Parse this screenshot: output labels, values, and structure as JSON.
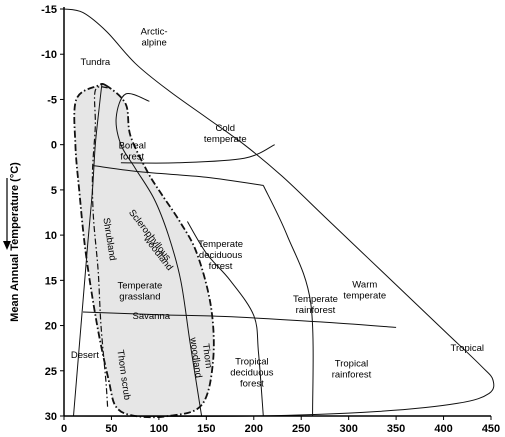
{
  "chart_data": {
    "type": "diagram",
    "ylabel": "Mean Annual Temperature (°C)",
    "xlim": [
      0,
      450
    ],
    "ylim": [
      -15,
      30
    ],
    "y_inverted": true,
    "x_ticks": [
      0,
      50,
      100,
      150,
      200,
      250,
      300,
      350,
      400,
      450
    ],
    "y_ticks": [
      -15,
      -10,
      -5,
      0,
      5,
      10,
      15,
      20,
      25,
      30
    ],
    "shaded_region_color": "#e6e6e6",
    "biomes": [
      {
        "lines": [
          "Arctic-",
          "alpine"
        ],
        "x": 95,
        "y": -12.2
      },
      {
        "lines": [
          "Tundra"
        ],
        "x": 33,
        "y": -8.8
      },
      {
        "lines": [
          "Boreal",
          "forest"
        ],
        "x": 72,
        "y": 0.4
      },
      {
        "lines": [
          "Cold",
          "temperate"
        ],
        "x": 170,
        "y": -1.5
      },
      {
        "lines": [
          "Temperate",
          "deciduous",
          "forest"
        ],
        "x": 165,
        "y": 11.3
      },
      {
        "lines": [
          "Temperate",
          "grassland"
        ],
        "x": 80,
        "y": 15.9
      },
      {
        "lines": [
          "Savanna"
        ],
        "x": 92,
        "y": 19.3
      },
      {
        "lines": [
          "Temperate",
          "rainforest"
        ],
        "x": 265,
        "y": 17.4
      },
      {
        "lines": [
          "Warm",
          "temperate"
        ],
        "x": 317,
        "y": 15.8
      },
      {
        "lines": [
          "Tropical"
        ],
        "x": 425,
        "y": 22.8
      },
      {
        "lines": [
          "Tropical",
          "deciduous",
          "forest"
        ],
        "x": 198,
        "y": 24.3
      },
      {
        "lines": [
          "Tropical",
          "rainforest"
        ],
        "x": 303,
        "y": 24.5
      },
      {
        "lines": [
          "Desert"
        ],
        "x": 22,
        "y": 23.6
      }
    ],
    "rotated_labels": [
      {
        "text": "Shrubland",
        "x": 45,
        "y": 10.5,
        "angle": 81
      },
      {
        "text": "Sclerophyllous",
        "x": 88,
        "y": 10.2,
        "angle": 52
      },
      {
        "text": "woodland",
        "x": 97,
        "y": 12.2,
        "angle": 52
      },
      {
        "text": "Thorn scrub",
        "x": 60,
        "y": 25.5,
        "angle": 82
      },
      {
        "text": "Thorn",
        "x": 148,
        "y": 23.4,
        "angle": 82
      },
      {
        "text": "woodland",
        "x": 136,
        "y": 23.6,
        "angle": 82
      }
    ],
    "boundaries": {
      "outer_envelope": [
        [
          0,
          -15
        ],
        [
          20,
          -14.6
        ],
        [
          45,
          -12.5
        ],
        [
          75,
          -9
        ],
        [
          110,
          -6
        ],
        [
          150,
          -3
        ],
        [
          190,
          0
        ],
        [
          230,
          3.5
        ],
        [
          275,
          8
        ],
        [
          320,
          12.5
        ],
        [
          365,
          17
        ],
        [
          405,
          21
        ],
        [
          440,
          24.5
        ],
        [
          452,
          26
        ],
        [
          448,
          27.5
        ],
        [
          415,
          28.6
        ],
        [
          330,
          29.5
        ],
        [
          200,
          30
        ],
        [
          0,
          30
        ]
      ],
      "biome_lines": [
        [
          [
            40,
            -6.8
          ],
          [
            37,
            -4
          ],
          [
            33,
            0
          ],
          [
            30,
            5
          ],
          [
            25,
            11
          ],
          [
            10,
            30
          ]
        ],
        [
          [
            30,
            2.3
          ],
          [
            80,
            3
          ],
          [
            150,
            3.6
          ],
          [
            210,
            4.5
          ]
        ],
        [
          [
            210,
            4.5
          ],
          [
            235,
            10
          ],
          [
            260,
            17.5
          ],
          [
            262,
            30
          ]
        ],
        [
          [
            20,
            18.5
          ],
          [
            100,
            18.8
          ],
          [
            170,
            19
          ],
          [
            270,
            19.6
          ],
          [
            350,
            20.2
          ]
        ],
        [
          [
            130,
            8.5
          ],
          [
            150,
            12
          ],
          [
            175,
            15
          ],
          [
            200,
            18.9
          ],
          [
            205,
            23
          ],
          [
            210,
            30
          ]
        ],
        [
          [
            90,
            -4.8
          ],
          [
            65,
            -5.6
          ],
          [
            55,
            -3
          ],
          [
            60,
            0
          ],
          [
            75,
            2.6
          ],
          [
            95,
            6
          ],
          [
            110,
            10
          ],
          [
            123,
            15
          ],
          [
            133,
            22
          ],
          [
            145,
            30
          ]
        ],
        [
          [
            60,
            2
          ],
          [
            120,
            2
          ],
          [
            190,
            1.5
          ],
          [
            222,
            0
          ]
        ]
      ],
      "shaded_region": [
        [
          45,
          -6.5
        ],
        [
          35,
          -6.5
        ],
        [
          13,
          -5
        ],
        [
          12,
          0
        ],
        [
          16,
          5
        ],
        [
          23,
          12
        ],
        [
          35,
          20
        ],
        [
          47,
          26
        ],
        [
          55,
          29
        ],
        [
          75,
          30
        ],
        [
          110,
          30
        ],
        [
          145,
          28.8
        ],
        [
          157,
          24
        ],
        [
          155,
          18
        ],
        [
          140,
          12
        ],
        [
          122,
          8.5
        ],
        [
          103,
          5.5
        ],
        [
          88,
          3
        ],
        [
          70,
          -1
        ],
        [
          65,
          -4.5
        ],
        [
          45,
          -6.5
        ]
      ],
      "dashdot_inner": [
        [
          46,
          -6.3
        ],
        [
          33,
          -6
        ],
        [
          33,
          -2
        ],
        [
          30,
          3
        ],
        [
          31,
          8
        ],
        [
          36,
          14
        ],
        [
          39,
          20
        ],
        [
          44,
          26
        ],
        [
          46,
          29
        ]
      ]
    }
  }
}
